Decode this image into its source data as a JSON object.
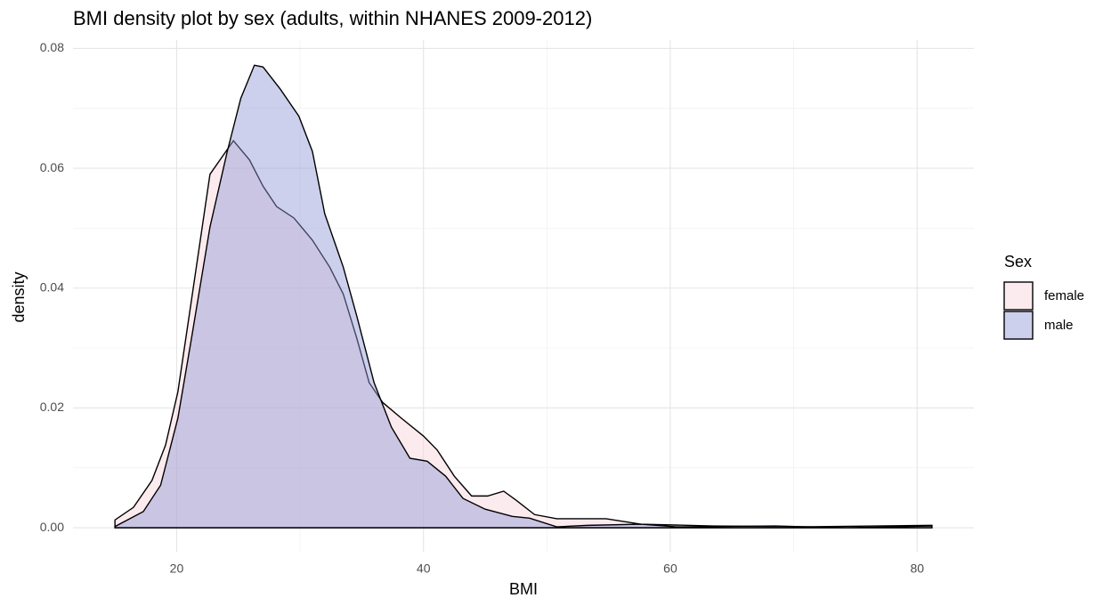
{
  "chart_data": {
    "type": "density",
    "title": "BMI density plot by sex (adults, within NHANES 2009-2012)",
    "x_label": "BMI",
    "y_label": "density",
    "legend_title": "Sex",
    "legend": "right",
    "grid": true,
    "xlim": [
      11.6,
      84.6
    ],
    "ylim": [
      -0.004,
      0.0814
    ],
    "xticks": [
      20,
      40,
      60,
      80
    ],
    "yticks": [
      {
        "value": 0,
        "label": "0.00"
      },
      {
        "value": 0.02,
        "label": "0.02"
      },
      {
        "value": 0.04,
        "label": "0.04"
      },
      {
        "value": 0.06,
        "label": "0.06"
      },
      {
        "value": 0.08,
        "label": "0.08"
      }
    ],
    "xminor": [
      30,
      50,
      70
    ],
    "yminor": [
      0.01,
      0.03,
      0.05,
      0.07
    ],
    "series": [
      {
        "name": "female",
        "color": "#f9d3da",
        "x": [
          15,
          16.5,
          18,
          19.1,
          20.1,
          21.2,
          22.7,
          24.6,
          25.9,
          27,
          28.1,
          29.5,
          31,
          32.4,
          33.5,
          34.6,
          35.6,
          36.7,
          38.2,
          40,
          41.1,
          42.5,
          43.9,
          45.2,
          46.5,
          47.5,
          49,
          50.8,
          54.8,
          57.6,
          63.4,
          70.6,
          81.2
        ],
        "values": [
          0.0013,
          0.0034,
          0.0079,
          0.0138,
          0.0227,
          0.038,
          0.059,
          0.0646,
          0.0614,
          0.057,
          0.0536,
          0.0517,
          0.048,
          0.0435,
          0.039,
          0.0316,
          0.0242,
          0.0209,
          0.0183,
          0.0153,
          0.013,
          0.0086,
          0.0053,
          0.0053,
          0.0061,
          0.0046,
          0.0022,
          0.0015,
          0.0015,
          0.0006,
          0.0003,
          0.00015,
          0.0004
        ]
      },
      {
        "name": "male",
        "color": "#8f96d4",
        "x": [
          15,
          17.3,
          18.7,
          20.1,
          21.2,
          22.7,
          24.1,
          25.2,
          26.3,
          27,
          28.4,
          29.9,
          31,
          32,
          33.5,
          34.6,
          36,
          37.4,
          38.9,
          40.3,
          41.8,
          43.2,
          45,
          47.2,
          48.6,
          50.8,
          53.3,
          57.6,
          60.5,
          63.4,
          68.5,
          74.2,
          81.2
        ],
        "values": [
          0.0002,
          0.0027,
          0.0071,
          0.0183,
          0.0316,
          0.0502,
          0.0628,
          0.0717,
          0.0772,
          0.0769,
          0.0732,
          0.0687,
          0.0628,
          0.0524,
          0.0435,
          0.0353,
          0.0242,
          0.0168,
          0.0116,
          0.0111,
          0.0086,
          0.0049,
          0.0031,
          0.0019,
          0.0016,
          0.00015,
          0.0004,
          0.0006,
          0.00015,
          0.0002,
          0.0003,
          0,
          0.0003
        ]
      }
    ]
  }
}
